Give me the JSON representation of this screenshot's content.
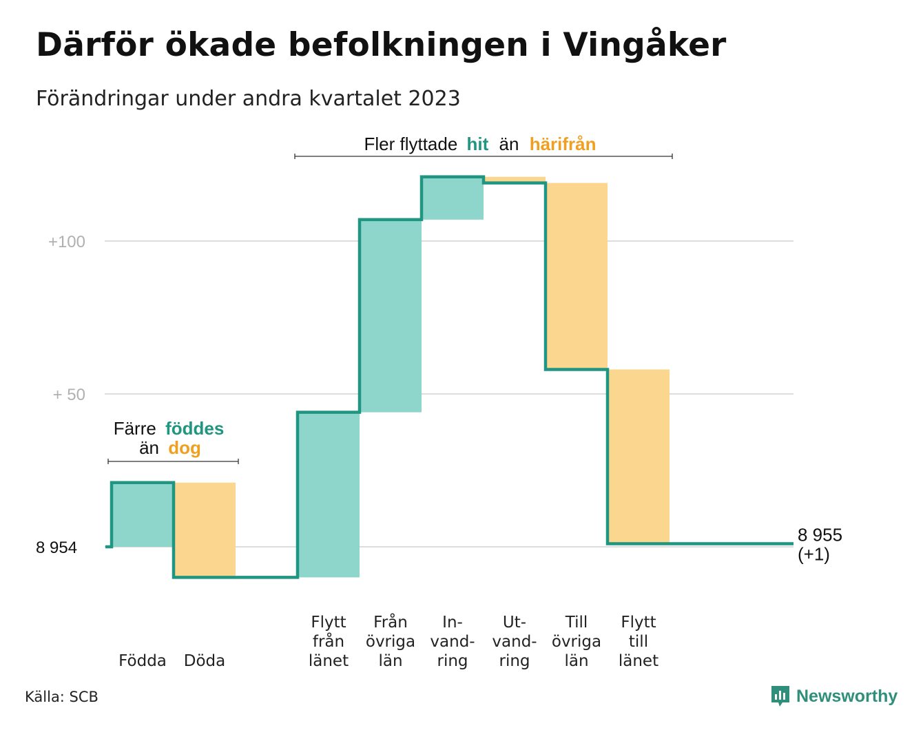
{
  "title": "Därför ökade befolkningen i Vingåker",
  "subtitle": "Förändringar under andra kvartalet 2023",
  "source": "Källa: SCB",
  "brand": "Newsworthy",
  "colors": {
    "increase_fill": "#8ed6cb",
    "decrease_fill": "#fbd68f",
    "step_line": "#1f9582",
    "teal_text": "#1f9582",
    "orange_text": "#f0a020",
    "grid": "#dddddd",
    "tick_text": "#b0b0b0"
  },
  "chart_data": {
    "type": "waterfall",
    "base_label": "8  954",
    "end_label_line1": "8 955",
    "end_label_line2": "(+1)",
    "base": 0,
    "ylim": [
      -20,
      125
    ],
    "yticks": [
      {
        "value": 0,
        "label": "8  954"
      },
      {
        "value": 50,
        "label": "+  50"
      },
      {
        "value": 100,
        "label": "+100"
      }
    ],
    "categories": [
      {
        "lines": [
          "Födda"
        ],
        "value": 21,
        "kind": "increase"
      },
      {
        "lines": [
          "Döda"
        ],
        "value": -31,
        "kind": "decrease"
      },
      {
        "lines": [],
        "value": 0,
        "kind": "gap"
      },
      {
        "lines": [
          "Flytt",
          "från",
          "länet"
        ],
        "value": 54,
        "kind": "increase"
      },
      {
        "lines": [
          "Från",
          "övriga",
          "län"
        ],
        "value": 63,
        "kind": "increase"
      },
      {
        "lines": [
          "In-",
          "vand-",
          "ring"
        ],
        "value": 14,
        "kind": "increase"
      },
      {
        "lines": [
          "Ut-",
          "vand-",
          "ring"
        ],
        "value": -2,
        "kind": "decrease"
      },
      {
        "lines": [
          "Till",
          "övriga",
          "län"
        ],
        "value": -61,
        "kind": "decrease"
      },
      {
        "lines": [
          "Flytt",
          "till",
          "länet"
        ],
        "value": -57,
        "kind": "decrease"
      }
    ],
    "final_value": 1,
    "annotations": {
      "births": {
        "line1_a": "Färre",
        "line1_b": "föddes",
        "line2_a": "än",
        "line2_b": "dog"
      },
      "migration": {
        "part_a": "Fler flyttade",
        "part_b": "hit",
        "part_c": "än",
        "part_d": "härifrån"
      }
    }
  }
}
